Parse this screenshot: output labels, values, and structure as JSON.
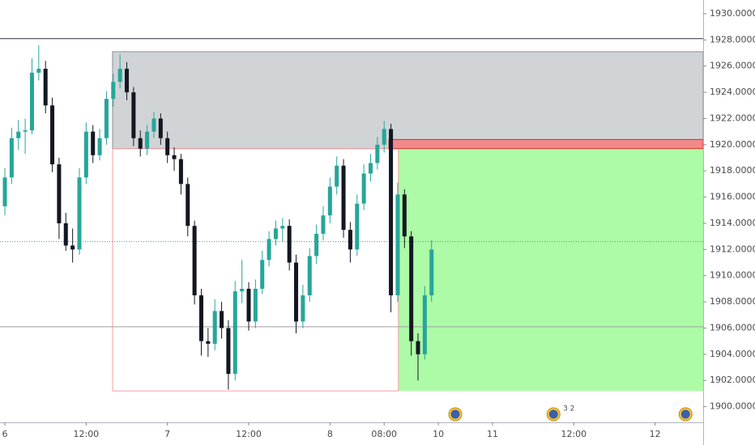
{
  "chart_data": {
    "type": "candlestick",
    "x": [
      0,
      1,
      2,
      3,
      4,
      5,
      6,
      7,
      8,
      9,
      10,
      11,
      12,
      13,
      14,
      15,
      16,
      17,
      18,
      19,
      20,
      21,
      22,
      23,
      24,
      25,
      26,
      27,
      28,
      29,
      30,
      31,
      32,
      33,
      34,
      35,
      36,
      37,
      38,
      39,
      40,
      41,
      42,
      43,
      44,
      45,
      46,
      47,
      48,
      49,
      50,
      51,
      52,
      53,
      54,
      55,
      56,
      57,
      58,
      59,
      60,
      61,
      62,
      63
    ],
    "open": [
      1915.3,
      1917.5,
      1920.5,
      1921.0,
      1921.1,
      1925.5,
      1925.8,
      1923.0,
      1918.5,
      1914.0,
      1912.3,
      1912.0,
      1917.5,
      1921.0,
      1919.2,
      1920.5,
      1923.5,
      1924.8,
      1925.8,
      1924.0,
      1920.5,
      1919.7,
      1921.0,
      1922.0,
      1920.5,
      1919.2,
      1918.9,
      1917.0,
      1913.8,
      1908.5,
      1905.0,
      1904.8,
      1907.3,
      1906.0,
      1902.5,
      1908.8,
      1909.0,
      1906.5,
      1909.0,
      1911.2,
      1912.8,
      1913.6,
      1913.8,
      1911.0,
      1906.5,
      1908.5,
      1911.5,
      1913.2,
      1914.6,
      1916.8,
      1918.4,
      1913.5,
      1912.0,
      1915.5,
      1917.8,
      1918.6,
      1920.0,
      1921.2,
      1908.5,
      1916.2,
      1913.0,
      1905.0,
      1904.0,
      1908.5
    ],
    "high": [
      1918.2,
      1921.3,
      1921.9,
      1922.0,
      1926.6,
      1927.6,
      1926.4,
      1923.6,
      1919.0,
      1914.8,
      1913.6,
      1918.2,
      1921.7,
      1921.5,
      1921.2,
      1924.1,
      1925.4,
      1926.9,
      1926.3,
      1924.4,
      1921.1,
      1921.5,
      1922.5,
      1922.4,
      1921.0,
      1919.8,
      1919.3,
      1917.5,
      1914.2,
      1909.0,
      1906.0,
      1908.2,
      1908.0,
      1906.6,
      1909.6,
      1911.2,
      1909.5,
      1909.7,
      1911.9,
      1913.4,
      1914.2,
      1914.4,
      1914.3,
      1911.6,
      1909.3,
      1912.1,
      1913.9,
      1915.3,
      1917.5,
      1919.1,
      1918.9,
      1914.1,
      1916.2,
      1918.5,
      1919.3,
      1920.6,
      1921.8,
      1921.6,
      1917.1,
      1916.6,
      1913.4,
      1905.6,
      1909.2,
      1912.7
    ],
    "low": [
      1914.6,
      1917.0,
      1919.6,
      1919.3,
      1920.8,
      1924.9,
      1922.4,
      1917.9,
      1912.8,
      1911.9,
      1911.0,
      1911.6,
      1917.0,
      1918.6,
      1918.8,
      1920.0,
      1922.9,
      1924.3,
      1923.4,
      1919.9,
      1919.1,
      1919.2,
      1920.5,
      1920.0,
      1918.6,
      1918.0,
      1916.2,
      1913.0,
      1907.8,
      1903.9,
      1903.8,
      1904.3,
      1905.2,
      1901.3,
      1902.0,
      1907.9,
      1905.8,
      1906.0,
      1908.6,
      1910.7,
      1912.3,
      1912.6,
      1910.4,
      1905.6,
      1906.0,
      1908.0,
      1910.9,
      1912.7,
      1914.0,
      1916.2,
      1912.9,
      1911.0,
      1911.5,
      1915.0,
      1917.2,
      1918.1,
      1919.4,
      1907.2,
      1908.0,
      1912.1,
      1903.9,
      1902.0,
      1903.6,
      1908.0
    ],
    "close": [
      1917.5,
      1920.5,
      1921.0,
      1921.1,
      1925.5,
      1925.8,
      1923.0,
      1918.5,
      1914.0,
      1912.3,
      1912.0,
      1917.5,
      1921.0,
      1919.2,
      1920.5,
      1923.5,
      1924.8,
      1925.8,
      1924.0,
      1920.5,
      1919.7,
      1921.0,
      1922.0,
      1920.5,
      1919.2,
      1918.9,
      1917.0,
      1913.8,
      1908.5,
      1905.0,
      1904.8,
      1907.3,
      1906.0,
      1902.5,
      1908.8,
      1909.0,
      1906.5,
      1909.0,
      1911.2,
      1912.8,
      1913.6,
      1913.8,
      1911.0,
      1906.5,
      1908.5,
      1911.5,
      1913.2,
      1914.6,
      1916.8,
      1918.4,
      1913.5,
      1912.0,
      1915.5,
      1917.8,
      1918.6,
      1920.0,
      1921.2,
      1908.5,
      1916.2,
      1913.0,
      1905.0,
      1904.0,
      1908.5,
      1912.0
    ],
    "up_color": "#26a69a",
    "down_color": "#131722",
    "xlim": [
      -0.72,
      103.1
    ],
    "ylim": [
      1898.8,
      1931.05
    ],
    "xticks": [
      {
        "value": 0,
        "label": "6"
      },
      {
        "value": 12,
        "label": "12:00"
      },
      {
        "value": 24,
        "label": "7"
      },
      {
        "value": 36,
        "label": "12:00"
      },
      {
        "value": 48,
        "label": "8"
      },
      {
        "value": 56,
        "label": "08:00"
      },
      {
        "value": 64,
        "label": "10"
      },
      {
        "value": 72,
        "label": "11"
      },
      {
        "value": 84,
        "label": "12:00"
      },
      {
        "value": 96,
        "label": "12"
      }
    ],
    "yticks": [
      {
        "value": 1900,
        "label": "1900.00000"
      },
      {
        "value": 1902,
        "label": "1902.00000"
      },
      {
        "value": 1904,
        "label": "1904.00000"
      },
      {
        "value": 1906,
        "label": "1906.00000"
      },
      {
        "value": 1908,
        "label": "1908.00000"
      },
      {
        "value": 1910,
        "label": "1910.00000"
      },
      {
        "value": 1912,
        "label": "1912.00000"
      },
      {
        "value": 1914,
        "label": "1914.00000"
      },
      {
        "value": 1916,
        "label": "1916.00000"
      },
      {
        "value": 1918,
        "label": "1918.00000"
      },
      {
        "value": 1920,
        "label": "1920.00000"
      },
      {
        "value": 1922,
        "label": "1922.00000"
      },
      {
        "value": 1924,
        "label": "1924.00000"
      },
      {
        "value": 1926,
        "label": "1926.00000"
      },
      {
        "value": 1928,
        "label": "1928.00000"
      },
      {
        "value": 1930,
        "label": "1930.00000"
      }
    ],
    "zones": [
      {
        "x": [
          15.9,
          103.1
        ],
        "y": [
          1919.7,
          1927.1
        ],
        "fill": "#d1d4d6",
        "stroke": "#8a8d93"
      },
      {
        "x": [
          58.1,
          103.1
        ],
        "y": [
          1901.2,
          1919.7
        ],
        "fill": "#adfba6",
        "stroke": "none"
      },
      {
        "x": [
          15.9,
          58.1
        ],
        "y": [
          1901.2,
          1919.7
        ],
        "fill": "none",
        "stroke": "#f4a0a0"
      },
      {
        "x": [
          56.7,
          103.1
        ],
        "y": [
          1919.7,
          1920.4
        ],
        "fill": "#f08a8a",
        "stroke": "#d32f2f"
      }
    ],
    "levels": [
      {
        "y": 1928.1,
        "color": "#2a2e39",
        "dash": false
      },
      {
        "y": 1906.1,
        "color": "#a0a0a0",
        "dash": false
      },
      {
        "y": 1912.6,
        "color": "#26a69a",
        "dash": true
      }
    ],
    "events_x": [
      66.5,
      81,
      100.5
    ],
    "event_badge": "3 2"
  }
}
